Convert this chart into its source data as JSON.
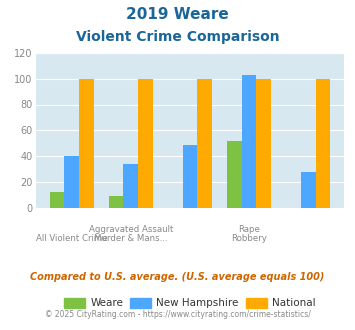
{
  "title_line1": "2019 Weare",
  "title_line2": "Violent Crime Comparison",
  "groups": [
    "All Violent Crime",
    "Aggravated Assault",
    "Murder & Mans...",
    "Rape",
    "Robbery"
  ],
  "weare": [
    12,
    9,
    0,
    52,
    0
  ],
  "new_hampshire": [
    40,
    34,
    49,
    103,
    28
  ],
  "national": [
    100,
    100,
    100,
    100,
    100
  ],
  "weare_color": "#7dc242",
  "nh_color": "#4da6ff",
  "national_color": "#ffaa00",
  "ylim": [
    0,
    120
  ],
  "yticks": [
    0,
    20,
    40,
    60,
    80,
    100,
    120
  ],
  "bg_color": "#d8e8f0",
  "title_color": "#1a6699",
  "tick_color": "#888888",
  "footer_text": "Compared to U.S. average. (U.S. average equals 100)",
  "credit_text": "© 2025 CityRating.com - https://www.cityrating.com/crime-statistics/",
  "footer_color": "#cc6600",
  "credit_color": "#888888",
  "legend_labels": [
    "Weare",
    "New Hampshire",
    "National"
  ],
  "bar_width": 0.25,
  "label_row1": [
    "",
    "Aggravated Assault",
    "",
    "Rape",
    ""
  ],
  "label_row2": [
    "All Violent Crime",
    "Murder & Mans...",
    "",
    "Robbery",
    ""
  ]
}
